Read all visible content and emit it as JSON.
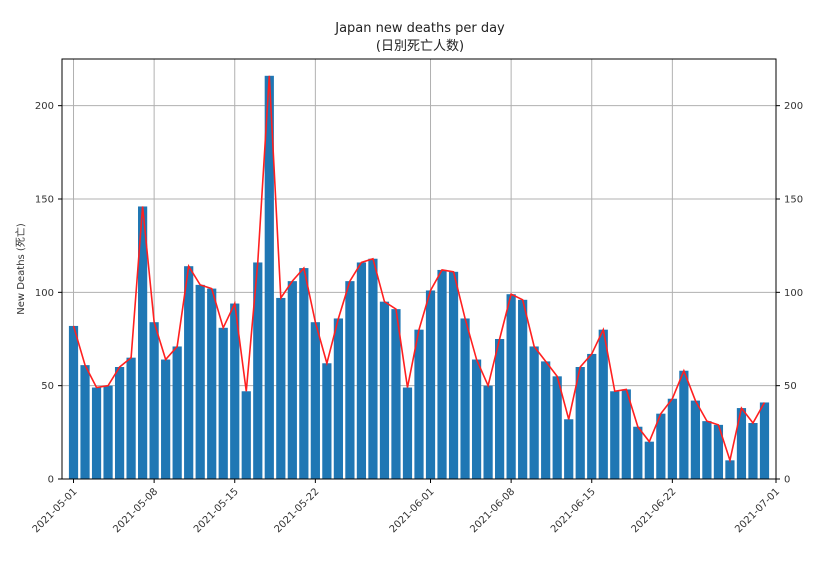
{
  "chart_data": {
    "type": "bar",
    "title": "Japan new deaths per day",
    "subtitle": "(日別死亡人数)",
    "ylabel": "New Deaths (死亡)",
    "xlabel": "",
    "ylim": [
      0,
      225
    ],
    "yticks": [
      0,
      50,
      100,
      150,
      200
    ],
    "grid": true,
    "secondary_y_axis": true,
    "bar_color": "#1f77b4",
    "line_color": "#ff2020",
    "x_start": "2021-04-30",
    "x_end": "2021-07-01",
    "xticks": [
      "2021-05-01",
      "2021-05-08",
      "2021-05-15",
      "2021-05-22",
      "2021-06-01",
      "2021-06-08",
      "2021-06-15",
      "2021-06-22",
      "2021-07-01"
    ],
    "series": [
      {
        "type": "bar",
        "dates": [
          "2021-05-01",
          "2021-05-02",
          "2021-05-03",
          "2021-05-04",
          "2021-05-05",
          "2021-05-06",
          "2021-05-07",
          "2021-05-08",
          "2021-05-09",
          "2021-05-10",
          "2021-05-11",
          "2021-05-12",
          "2021-05-13",
          "2021-05-14",
          "2021-05-15",
          "2021-05-16",
          "2021-05-17",
          "2021-05-18",
          "2021-05-19",
          "2021-05-20",
          "2021-05-21",
          "2021-05-22",
          "2021-05-23",
          "2021-05-24",
          "2021-05-25",
          "2021-05-26",
          "2021-05-27",
          "2021-05-28",
          "2021-05-29",
          "2021-05-30",
          "2021-05-31",
          "2021-06-01",
          "2021-06-02",
          "2021-06-03",
          "2021-06-04",
          "2021-06-05",
          "2021-06-06",
          "2021-06-07",
          "2021-06-08",
          "2021-06-09",
          "2021-06-10",
          "2021-06-11",
          "2021-06-12",
          "2021-06-13",
          "2021-06-14",
          "2021-06-15",
          "2021-06-16",
          "2021-06-17",
          "2021-06-18",
          "2021-06-19",
          "2021-06-20",
          "2021-06-21",
          "2021-06-22",
          "2021-06-23",
          "2021-06-24",
          "2021-06-25",
          "2021-06-26",
          "2021-06-27",
          "2021-06-28",
          "2021-06-29",
          "2021-06-30"
        ],
        "values": [
          82,
          61,
          49,
          50,
          60,
          65,
          146,
          84,
          64,
          71,
          114,
          104,
          102,
          81,
          94,
          47,
          116,
          216,
          97,
          106,
          113,
          84,
          62,
          86,
          106,
          116,
          118,
          95,
          91,
          49,
          80,
          101,
          112,
          111,
          86,
          64,
          50,
          75,
          99,
          96,
          71,
          63,
          55,
          32,
          60,
          67,
          80,
          47,
          48,
          28,
          20,
          35,
          43,
          58,
          42,
          31,
          29,
          10,
          38,
          30,
          41
        ]
      },
      {
        "type": "line",
        "dates": [
          "2021-05-01",
          "2021-05-02",
          "2021-05-03",
          "2021-05-04",
          "2021-05-05",
          "2021-05-06",
          "2021-05-07",
          "2021-05-08",
          "2021-05-09",
          "2021-05-10",
          "2021-05-11",
          "2021-05-12",
          "2021-05-13",
          "2021-05-14",
          "2021-05-15",
          "2021-05-16",
          "2021-05-17",
          "2021-05-18",
          "2021-05-19",
          "2021-05-20",
          "2021-05-21",
          "2021-05-22",
          "2021-05-23",
          "2021-05-24",
          "2021-05-25",
          "2021-05-26",
          "2021-05-27",
          "2021-05-28",
          "2021-05-29",
          "2021-05-30",
          "2021-05-31",
          "2021-06-01",
          "2021-06-02",
          "2021-06-03",
          "2021-06-04",
          "2021-06-05",
          "2021-06-06",
          "2021-06-07",
          "2021-06-08",
          "2021-06-09",
          "2021-06-10",
          "2021-06-11",
          "2021-06-12",
          "2021-06-13",
          "2021-06-14",
          "2021-06-15",
          "2021-06-16",
          "2021-06-17",
          "2021-06-18",
          "2021-06-19",
          "2021-06-20",
          "2021-06-21",
          "2021-06-22",
          "2021-06-23",
          "2021-06-24",
          "2021-06-25",
          "2021-06-26",
          "2021-06-27",
          "2021-06-28",
          "2021-06-29",
          "2021-06-30"
        ],
        "values": [
          82,
          61,
          49,
          50,
          60,
          65,
          146,
          84,
          64,
          71,
          114,
          104,
          102,
          81,
          94,
          47,
          116,
          216,
          97,
          106,
          113,
          84,
          62,
          86,
          106,
          116,
          118,
          95,
          91,
          49,
          80,
          101,
          112,
          111,
          86,
          64,
          50,
          75,
          99,
          96,
          71,
          63,
          55,
          32,
          60,
          67,
          80,
          47,
          48,
          28,
          20,
          35,
          43,
          58,
          42,
          31,
          29,
          10,
          38,
          30,
          41
        ]
      }
    ]
  }
}
